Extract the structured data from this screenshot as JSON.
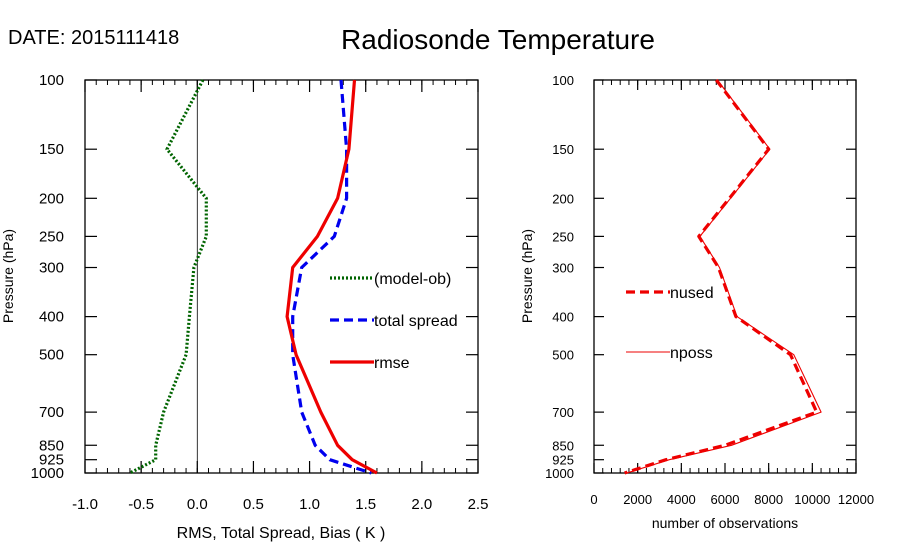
{
  "header": {
    "date": "DATE: 2015111418",
    "title": "Radiosonde Temperature"
  },
  "chart_data": [
    {
      "type": "line",
      "xlabel": "RMS, Total Spread, Bias ( K )",
      "ylabel": "Pressure (hPa)",
      "xlim": [
        -1.0,
        2.5
      ],
      "ylim": [
        1000,
        100
      ],
      "y_scale": "log",
      "x_ticks": [
        "-1.0",
        "-0.5",
        "0.0",
        "0.5",
        "1.0",
        "1.5",
        "2.0",
        "2.5"
      ],
      "y_ticks": [
        "100",
        "150",
        "200",
        "250",
        "300",
        "400",
        "500",
        "700",
        "850",
        "925",
        "1000"
      ],
      "legend_position": "center-right",
      "zero_line": true,
      "series": [
        {
          "name": "(model-ob)",
          "color": "#006400",
          "style": "dotted",
          "points": [
            [
              0.05,
              100
            ],
            [
              -0.27,
              150
            ],
            [
              0.08,
              200
            ],
            [
              0.08,
              250
            ],
            [
              -0.03,
              300
            ],
            [
              -0.07,
              400
            ],
            [
              -0.1,
              500
            ],
            [
              -0.3,
              700
            ],
            [
              -0.37,
              850
            ],
            [
              -0.37,
              925
            ],
            [
              -0.6,
              1000
            ]
          ]
        },
        {
          "name": "total spread",
          "color": "#0000ee",
          "style": "dashed",
          "points": [
            [
              1.28,
              100
            ],
            [
              1.33,
              150
            ],
            [
              1.33,
              200
            ],
            [
              1.22,
              250
            ],
            [
              0.93,
              300
            ],
            [
              0.85,
              400
            ],
            [
              0.85,
              500
            ],
            [
              0.93,
              700
            ],
            [
              1.05,
              850
            ],
            [
              1.18,
              925
            ],
            [
              1.55,
              1000
            ]
          ]
        },
        {
          "name": "rmse",
          "color": "#ee0000",
          "style": "solid",
          "points": [
            [
              1.4,
              100
            ],
            [
              1.35,
              150
            ],
            [
              1.25,
              200
            ],
            [
              1.07,
              250
            ],
            [
              0.85,
              300
            ],
            [
              0.8,
              400
            ],
            [
              0.88,
              500
            ],
            [
              1.1,
              700
            ],
            [
              1.25,
              850
            ],
            [
              1.38,
              925
            ],
            [
              1.6,
              1000
            ]
          ]
        }
      ]
    },
    {
      "type": "line",
      "xlabel": "number of observations",
      "ylabel": "Pressure (hPa)",
      "xlim": [
        0,
        12000
      ],
      "ylim": [
        1000,
        100
      ],
      "y_scale": "log",
      "x_ticks": [
        "0",
        "2000",
        "4000",
        "6000",
        "8000",
        "10000",
        "12000"
      ],
      "y_ticks": [
        "100",
        "150",
        "200",
        "250",
        "300",
        "400",
        "500",
        "700",
        "850",
        "925",
        "1000"
      ],
      "legend_position": "center-left",
      "series": [
        {
          "name": "nused",
          "color": "#ee0000",
          "style": "dashed",
          "points": [
            [
              5600,
              100
            ],
            [
              8000,
              150
            ],
            [
              6200,
              200
            ],
            [
              4800,
              250
            ],
            [
              5700,
              300
            ],
            [
              6500,
              400
            ],
            [
              9000,
              500
            ],
            [
              10200,
              700
            ],
            [
              6000,
              850
            ],
            [
              3300,
              925
            ],
            [
              1400,
              1000
            ]
          ]
        },
        {
          "name": "nposs",
          "color": "#ee0000",
          "style": "thin",
          "points": [
            [
              5650,
              100
            ],
            [
              8050,
              150
            ],
            [
              6250,
              200
            ],
            [
              4850,
              250
            ],
            [
              5750,
              300
            ],
            [
              6550,
              400
            ],
            [
              9150,
              500
            ],
            [
              10400,
              700
            ],
            [
              6300,
              850
            ],
            [
              3450,
              925
            ],
            [
              1500,
              1000
            ]
          ]
        }
      ]
    }
  ]
}
